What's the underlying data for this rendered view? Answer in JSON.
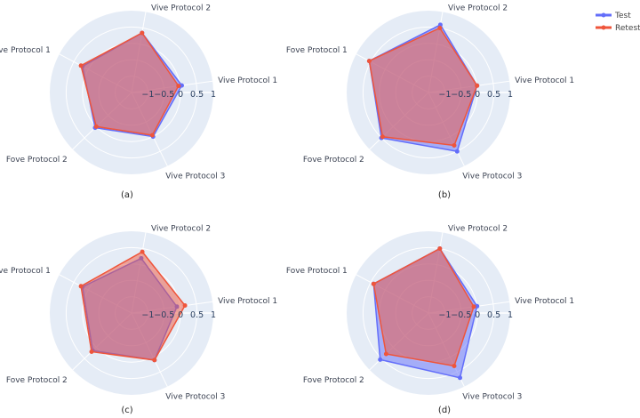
{
  "legend": {
    "position": "top-right",
    "items": [
      {
        "name": "Test",
        "color": "#636efa"
      },
      {
        "name": "Retest",
        "color": "#ef553b"
      }
    ]
  },
  "chart_data": [
    {
      "type": "radar",
      "caption": "(a)",
      "axes": [
        "Vive Protocol 1",
        "Vive Protocol 2",
        "Fove Protocol 1",
        "Fove Protocol 2",
        "Vive Protocol 3"
      ],
      "radial_range": [
        -1.5,
        1
      ],
      "radial_ticks": [
        "−1",
        "−0.5",
        "0",
        "0.5",
        "1"
      ],
      "grid": true,
      "series": [
        {
          "name": "Test",
          "values": [
            0.05,
            0.35,
            0.2,
            0.05,
            0.0
          ]
        },
        {
          "name": "Retest",
          "values": [
            -0.05,
            0.35,
            0.25,
            0.0,
            -0.05
          ]
        }
      ]
    },
    {
      "type": "radar",
      "caption": "(b)",
      "axes": [
        "Vive Protocol 1",
        "Vive Protocol 2",
        "Fove Protocol 1",
        "Fove Protocol 2",
        "Vive Protocol 3"
      ],
      "radial_range": [
        -1.5,
        1
      ],
      "radial_ticks": [
        "−1",
        "−0.5",
        "0",
        "0.5",
        "1"
      ],
      "grid": true,
      "series": [
        {
          "name": "Test",
          "values": [
            0.0,
            0.6,
            0.55,
            0.5,
            0.5
          ]
        },
        {
          "name": "Retest",
          "values": [
            0.0,
            0.5,
            0.55,
            0.45,
            0.3
          ]
        }
      ]
    },
    {
      "type": "radar",
      "caption": "(c)",
      "axes": [
        "Vive Protocol 1",
        "Vive Protocol 2",
        "Fove Protocol 1",
        "Fove Protocol 2",
        "Vive Protocol 3"
      ],
      "radial_range": [
        -1.5,
        1
      ],
      "radial_ticks": [
        "−1",
        "−0.5",
        "0",
        "0.5",
        "1"
      ],
      "grid": true,
      "series": [
        {
          "name": "Test",
          "values": [
            -0.1,
            0.2,
            0.2,
            0.15,
            0.1
          ]
        },
        {
          "name": "Retest",
          "values": [
            0.15,
            0.4,
            0.25,
            0.2,
            0.1
          ]
        }
      ]
    },
    {
      "type": "radar",
      "caption": "(d)",
      "axes": [
        "Vive Protocol 1",
        "Vive Protocol 2",
        "Fove Protocol 1",
        "Fove Protocol 2",
        "Vive Protocol 3"
      ],
      "radial_range": [
        -1.5,
        1
      ],
      "radial_ticks": [
        "−1",
        "−0.5",
        "0",
        "0.5",
        "1"
      ],
      "grid": true,
      "series": [
        {
          "name": "Test",
          "values": [
            0.0,
            0.5,
            0.4,
            0.55,
            0.7
          ]
        },
        {
          "name": "Retest",
          "values": [
            -0.1,
            0.5,
            0.4,
            0.3,
            0.3
          ]
        }
      ]
    }
  ]
}
